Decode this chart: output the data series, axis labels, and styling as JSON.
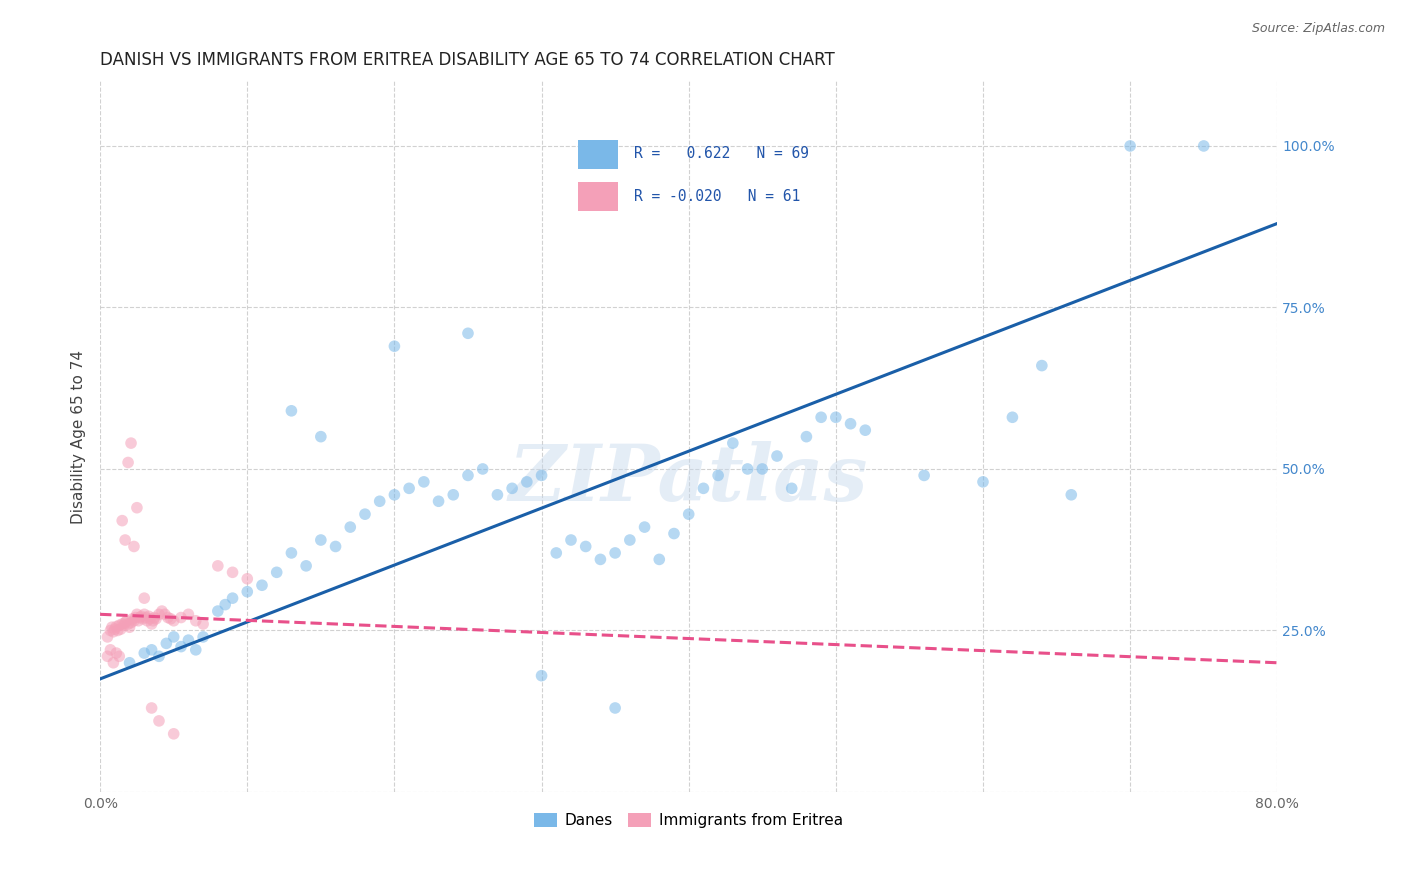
{
  "title": "DANISH VS IMMIGRANTS FROM ERITREA DISABILITY AGE 65 TO 74 CORRELATION CHART",
  "source": "Source: ZipAtlas.com",
  "ylabel": "Disability Age 65 to 74",
  "xlim": [
    0.0,
    0.8
  ],
  "ylim": [
    0.0,
    1.1
  ],
  "xticks": [
    0.0,
    0.1,
    0.2,
    0.3,
    0.4,
    0.5,
    0.6,
    0.7,
    0.8
  ],
  "xticklabels": [
    "0.0%",
    "",
    "",
    "",
    "",
    "",
    "",
    "",
    "80.0%"
  ],
  "yticks": [
    0.0,
    0.25,
    0.5,
    0.75,
    1.0
  ],
  "yticklabels": [
    "",
    "25.0%",
    "50.0%",
    "75.0%",
    "100.0%"
  ],
  "danes_color": "#7ab8e8",
  "eritrea_color": "#f4a0b8",
  "danes_line_color": "#1a5fa8",
  "eritrea_line_color": "#e8508a",
  "danes_R": 0.622,
  "danes_N": 69,
  "eritrea_R": -0.02,
  "eritrea_N": 61,
  "watermark": "ZIPatlas",
  "danes_x": [
    0.02,
    0.03,
    0.035,
    0.04,
    0.045,
    0.05,
    0.055,
    0.06,
    0.065,
    0.07,
    0.08,
    0.085,
    0.09,
    0.1,
    0.11,
    0.12,
    0.13,
    0.14,
    0.15,
    0.16,
    0.17,
    0.18,
    0.19,
    0.2,
    0.21,
    0.22,
    0.23,
    0.24,
    0.25,
    0.26,
    0.27,
    0.28,
    0.29,
    0.3,
    0.31,
    0.32,
    0.33,
    0.34,
    0.35,
    0.36,
    0.37,
    0.38,
    0.39,
    0.4,
    0.41,
    0.42,
    0.43,
    0.44,
    0.45,
    0.46,
    0.47,
    0.48,
    0.49,
    0.5,
    0.51,
    0.52,
    0.56,
    0.6,
    0.62,
    0.64,
    0.66,
    0.7,
    0.75,
    0.13,
    0.15,
    0.2,
    0.25,
    0.3,
    0.35
  ],
  "danes_y": [
    0.2,
    0.215,
    0.22,
    0.21,
    0.23,
    0.24,
    0.225,
    0.235,
    0.22,
    0.24,
    0.28,
    0.29,
    0.3,
    0.31,
    0.32,
    0.34,
    0.37,
    0.35,
    0.39,
    0.38,
    0.41,
    0.43,
    0.45,
    0.46,
    0.47,
    0.48,
    0.45,
    0.46,
    0.49,
    0.5,
    0.46,
    0.47,
    0.48,
    0.49,
    0.37,
    0.39,
    0.38,
    0.36,
    0.37,
    0.39,
    0.41,
    0.36,
    0.4,
    0.43,
    0.47,
    0.49,
    0.54,
    0.5,
    0.5,
    0.52,
    0.47,
    0.55,
    0.58,
    0.58,
    0.57,
    0.56,
    0.49,
    0.48,
    0.58,
    0.66,
    0.46,
    1.0,
    1.0,
    0.59,
    0.55,
    0.69,
    0.71,
    0.18,
    0.13
  ],
  "eritrea_x": [
    0.005,
    0.007,
    0.008,
    0.009,
    0.01,
    0.011,
    0.012,
    0.013,
    0.014,
    0.015,
    0.016,
    0.017,
    0.018,
    0.019,
    0.02,
    0.021,
    0.022,
    0.023,
    0.024,
    0.025,
    0.026,
    0.027,
    0.028,
    0.029,
    0.03,
    0.031,
    0.032,
    0.033,
    0.034,
    0.035,
    0.036,
    0.037,
    0.038,
    0.04,
    0.042,
    0.044,
    0.046,
    0.048,
    0.05,
    0.055,
    0.06,
    0.065,
    0.07,
    0.08,
    0.09,
    0.1,
    0.005,
    0.007,
    0.009,
    0.011,
    0.013,
    0.015,
    0.017,
    0.019,
    0.021,
    0.023,
    0.025,
    0.03,
    0.035,
    0.04,
    0.05
  ],
  "eritrea_y": [
    0.24,
    0.25,
    0.255,
    0.248,
    0.252,
    0.256,
    0.25,
    0.258,
    0.252,
    0.26,
    0.258,
    0.262,
    0.265,
    0.26,
    0.255,
    0.262,
    0.268,
    0.265,
    0.27,
    0.275,
    0.265,
    0.27,
    0.272,
    0.268,
    0.275,
    0.27,
    0.265,
    0.272,
    0.268,
    0.26,
    0.265,
    0.27,
    0.268,
    0.275,
    0.28,
    0.275,
    0.27,
    0.268,
    0.265,
    0.27,
    0.275,
    0.265,
    0.26,
    0.35,
    0.34,
    0.33,
    0.21,
    0.22,
    0.2,
    0.215,
    0.21,
    0.42,
    0.39,
    0.51,
    0.54,
    0.38,
    0.44,
    0.3,
    0.13,
    0.11,
    0.09
  ],
  "background_color": "#ffffff",
  "grid_color": "#cccccc",
  "title_fontsize": 12,
  "axis_label_fontsize": 11,
  "tick_fontsize": 10,
  "dot_size": 70,
  "dot_alpha": 0.55,
  "line_width": 2.2,
  "danes_line_x0": 0.0,
  "danes_line_y0": 0.175,
  "danes_line_x1": 0.8,
  "danes_line_y1": 0.88,
  "eritrea_line_x0": 0.0,
  "eritrea_line_y0": 0.275,
  "eritrea_line_x1": 0.8,
  "eritrea_line_y1": 0.2
}
